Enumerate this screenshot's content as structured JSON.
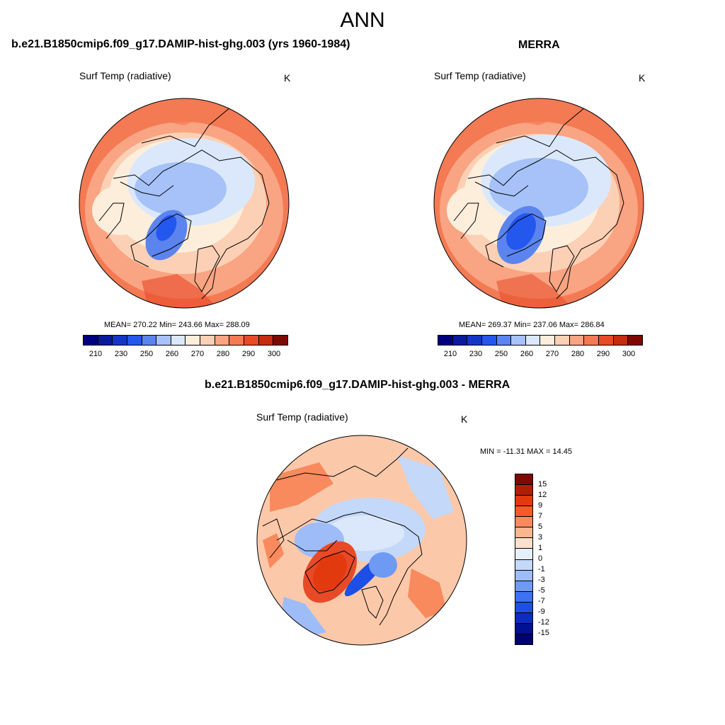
{
  "season": "ANN",
  "panels": [
    {
      "title": "b.e21.B1850cmip6.f09_g17.DAMIP-hist-ghg.003 (yrs 1960-1984)",
      "variable": "Surf Temp (radiative)",
      "units": "K",
      "stats": "MEAN= 270.22  Min= 243.66  Max= 288.09"
    },
    {
      "title": "MERRA",
      "variable": "Surf Temp (radiative)",
      "units": "K",
      "stats": "MEAN= 269.37  Min= 237.06  Max= 286.84"
    }
  ],
  "diff_panel": {
    "title": "b.e21.B1850cmip6.f09_g17.DAMIP-hist-ghg.003 - MERRA",
    "variable": "Surf Temp (radiative)",
    "units": "K",
    "stats": "MIN = -11.31 MAX =  14.45"
  },
  "abs_colorbar": {
    "colors": [
      "#00007f",
      "#0a1a9c",
      "#1436c4",
      "#2457ee",
      "#5b84ef",
      "#a6c2f8",
      "#dbe8fb",
      "#fdeedc",
      "#fcd0b5",
      "#f9a482",
      "#f47a54",
      "#e84a28",
      "#c52c10",
      "#7e0902"
    ],
    "tick_labels": [
      "210",
      "230",
      "250",
      "260",
      "270",
      "280",
      "290",
      "300"
    ]
  },
  "diff_colorbar": {
    "colors": [
      "#7e0902",
      "#b01f05",
      "#e2390f",
      "#f85a27",
      "#f98a5e",
      "#fbb58f",
      "#fde1cc",
      "#e6f0fd",
      "#c4d8fa",
      "#9ebcf7",
      "#6f9af4",
      "#3d73f0",
      "#1d4fe6",
      "#0d2cc0",
      "#00128f",
      "#000070"
    ],
    "tick_labels": [
      "15",
      "12",
      "9",
      "7",
      "5",
      "3",
      "1",
      "0",
      "-1",
      "-3",
      "-5",
      "-7",
      "-9",
      "-12",
      "-15"
    ]
  },
  "map_colors": {
    "warm_outer": "#f47a54",
    "warm_mid": "#f9a482",
    "warm_light": "#fcd0b5",
    "neutral": "#fdeedc",
    "cool_light": "#dbe8fb",
    "cool_mid": "#a6c2f8",
    "cool_deep": "#5b84ef",
    "cool_deeper": "#2457ee",
    "diff_base": "#fbc9aa",
    "diff_warm": "#f98a5e",
    "diff_hot": "#e84a28",
    "diff_cool": "#c4d8fa",
    "diff_cooler": "#6f9af4",
    "diff_cold": "#1d4fe6"
  }
}
